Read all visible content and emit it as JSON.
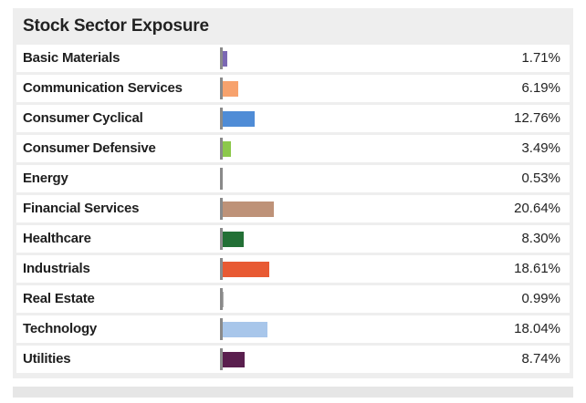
{
  "chart_data": {
    "type": "bar",
    "title": "Stock Sector Exposure",
    "orientation": "horizontal",
    "categories": [
      "Basic Materials",
      "Communication Services",
      "Consumer Cyclical",
      "Consumer Defensive",
      "Energy",
      "Financial Services",
      "Healthcare",
      "Industrials",
      "Real Estate",
      "Technology",
      "Utilities"
    ],
    "values": [
      1.71,
      6.19,
      12.76,
      3.49,
      0.53,
      20.64,
      8.3,
      18.61,
      0.99,
      18.04,
      8.74
    ],
    "value_labels": [
      "1.71%",
      "6.19%",
      "12.76%",
      "3.49%",
      "0.53%",
      "20.64%",
      "8.30%",
      "18.61%",
      "0.99%",
      "18.04%",
      "8.74%"
    ],
    "colors": [
      "#7b68b3",
      "#f7a26d",
      "#4f8cd6",
      "#8cc84b",
      "#9a9a9a",
      "#be9278",
      "#237036",
      "#e85a33",
      "#b0b0b0",
      "#a8c6ea",
      "#5a1f4e"
    ],
    "xlim": [
      0,
      100
    ],
    "grid": false,
    "legend": "none"
  }
}
